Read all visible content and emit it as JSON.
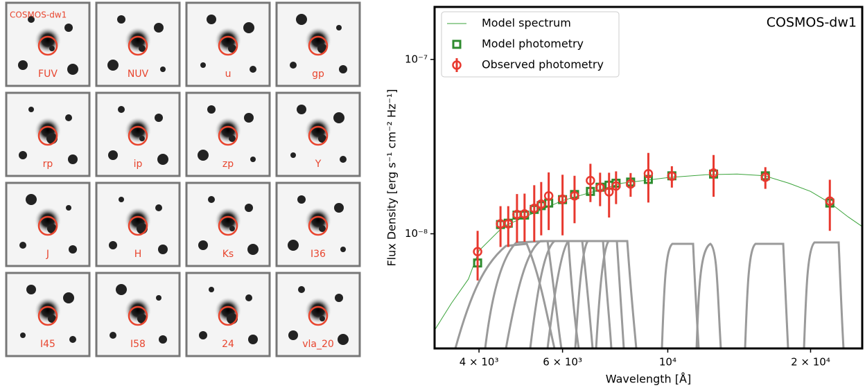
{
  "cutouts": {
    "title": "COSMOS-dw1",
    "bands": [
      "FUV",
      "NUV",
      "u",
      "gp",
      "rp",
      "ip",
      "zp",
      "Y",
      "J",
      "H",
      "Ks",
      "I36",
      "I45",
      "I58",
      "24",
      "vla_20"
    ]
  },
  "chart_data": {
    "type": "sed",
    "annotation": "COSMOS-dw1",
    "xlabel": "Wavelength [Å]",
    "ylabel": "Flux Density [erg s⁻¹ cm⁻² Hz⁻¹]",
    "xlog": true,
    "ylog": true,
    "xlim": [
      3224,
      25700
    ],
    "ylim": [
      2.2e-09,
      2e-07
    ],
    "xticks": [
      {
        "value": 4000,
        "label": "4 × 10³"
      },
      {
        "value": 6000,
        "label": "6 × 10³"
      },
      {
        "value": 10000,
        "label": "10⁴"
      },
      {
        "value": 20000,
        "label": "2 × 10⁴"
      }
    ],
    "yticks": [
      {
        "value": 1e-08,
        "label": "10⁻⁸"
      },
      {
        "value": 1e-07,
        "label": "10⁻⁷"
      }
    ],
    "legend": "upper left",
    "x": [
      3973,
      4440,
      4610,
      4810,
      4990,
      5230,
      5410,
      5610,
      6000,
      6360,
      6870,
      7200,
      7520,
      7780,
      8350,
      9100,
      10200,
      12490,
      16060,
      21960
    ],
    "series": [
      {
        "name": "Model spectrum",
        "color": "#3aa33a",
        "kind": "line",
        "x": [
          3224,
          3500,
          3800,
          4000,
          4500,
          5000,
          6000,
          7000,
          8000,
          10000,
          12000,
          14000,
          16000,
          18000,
          20000,
          22000,
          24000,
          25700
        ],
        "values": [
          2.8e-09,
          4e-09,
          5.5e-09,
          8e-09,
          1.1e-08,
          1.25e-08,
          1.55e-08,
          1.75e-08,
          1.95e-08,
          2.1e-08,
          2.18e-08,
          2.2e-08,
          2.15e-08,
          1.95e-08,
          1.75e-08,
          1.5e-08,
          1.25e-08,
          1.1e-08
        ]
      },
      {
        "name": "Model photometry",
        "color": "#2e8b2e",
        "kind": "square",
        "values": [
          6.8e-09,
          1.13e-08,
          1.15e-08,
          1.28e-08,
          1.28e-08,
          1.38e-08,
          1.45e-08,
          1.5e-08,
          1.57e-08,
          1.68e-08,
          1.75e-08,
          1.85e-08,
          1.9e-08,
          1.95e-08,
          1.98e-08,
          2.05e-08,
          2.15e-08,
          2.2e-08,
          2.15e-08,
          1.5e-08
        ]
      },
      {
        "name": "Observed photometry",
        "color": "#e8382e",
        "kind": "errorcircle",
        "values": [
          7.9e-09,
          1.14e-08,
          1.14e-08,
          1.29e-08,
          1.3e-08,
          1.4e-08,
          1.48e-08,
          1.65e-08,
          1.58e-08,
          1.65e-08,
          2.02e-08,
          1.84e-08,
          1.74e-08,
          1.88e-08,
          1.93e-08,
          2.21e-08,
          2.14e-08,
          2.23e-08,
          2.11e-08,
          1.54e-08
        ],
        "errors": [
          2.5e-09,
          3e-09,
          3e-09,
          4e-09,
          4e-09,
          5e-09,
          5e-09,
          6e-09,
          6e-09,
          5e-09,
          5e-09,
          4e-09,
          5e-09,
          4e-09,
          3e-09,
          7e-09,
          3e-09,
          6e-09,
          3e-09,
          5e-09
        ]
      }
    ]
  }
}
